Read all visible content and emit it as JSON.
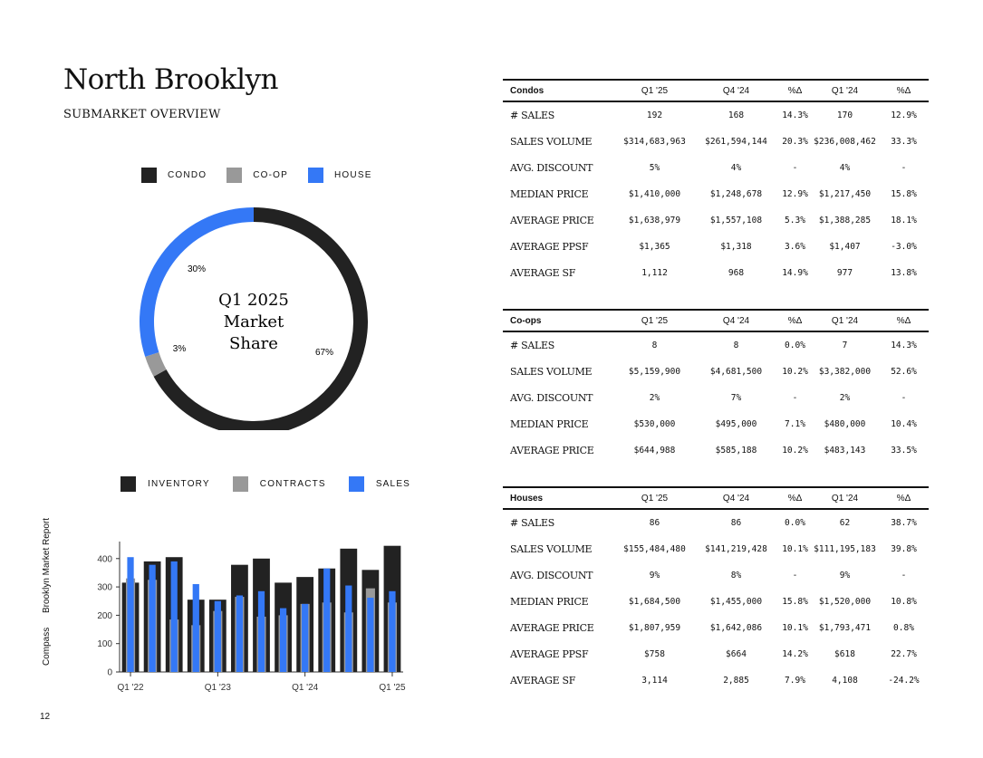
{
  "header": {
    "title": "North Brooklyn",
    "subtitle": "SUBMARKET OVERVIEW"
  },
  "colors": {
    "condo": "#222222",
    "coop": "#999999",
    "house": "#3478f6",
    "ink": "#111111"
  },
  "donut": {
    "legend": [
      "CONDO",
      "CO-OP",
      "HOUSE"
    ],
    "center_lines": [
      "Q1 2025",
      "Market",
      "Share"
    ],
    "slices": [
      {
        "name": "CONDO",
        "value": 67,
        "label": "67%"
      },
      {
        "name": "CO-OP",
        "value": 3,
        "label": "3%"
      },
      {
        "name": "HOUSE",
        "value": 30,
        "label": "30%"
      }
    ]
  },
  "chart_data": {
    "type": "bar",
    "legend": [
      "INVENTORY",
      "CONTRACTS",
      "SALES"
    ],
    "x_tick_labels": [
      "Q1 '22",
      "Q1 '23",
      "Q1 '24",
      "Q1 '25"
    ],
    "y_ticks": [
      0,
      100,
      200,
      300,
      400
    ],
    "ylim": [
      0,
      460
    ],
    "series": [
      {
        "name": "INVENTORY",
        "values": [
          315,
          390,
          405,
          255,
          255,
          378,
          400,
          315,
          335,
          365,
          435,
          360,
          445
        ]
      },
      {
        "name": "CONTRACTS",
        "values": [
          330,
          325,
          185,
          165,
          215,
          265,
          195,
          200,
          240,
          245,
          210,
          295,
          245
        ]
      },
      {
        "name": "SALES",
        "values": [
          405,
          378,
          390,
          310,
          250,
          270,
          285,
          225,
          240,
          365,
          305,
          262,
          285
        ]
      }
    ]
  },
  "sidebar": {
    "brand": "Compass",
    "report": "Brooklyn Market Report"
  },
  "page_number": "12",
  "tables": {
    "columns": [
      "Q1 '25",
      "Q4 '24",
      "%Δ",
      "Q1 '24",
      "%Δ"
    ],
    "condos": {
      "title": "Condos",
      "rows": [
        [
          "# SALES",
          "192",
          "168",
          "14.3%",
          "170",
          "12.9%"
        ],
        [
          "SALES VOLUME",
          "$314,683,963",
          "$261,594,144",
          "20.3%",
          "$236,008,462",
          "33.3%"
        ],
        [
          "AVG. DISCOUNT",
          "5%",
          "4%",
          "-",
          "4%",
          "-"
        ],
        [
          "MEDIAN PRICE",
          "$1,410,000",
          "$1,248,678",
          "12.9%",
          "$1,217,450",
          "15.8%"
        ],
        [
          "AVERAGE PRICE",
          "$1,638,979",
          "$1,557,108",
          "5.3%",
          "$1,388,285",
          "18.1%"
        ],
        [
          "AVERAGE PPSF",
          "$1,365",
          "$1,318",
          "3.6%",
          "$1,407",
          "-3.0%"
        ],
        [
          "AVERAGE SF",
          "1,112",
          "968",
          "14.9%",
          "977",
          "13.8%"
        ]
      ]
    },
    "coops": {
      "title": "Co-ops",
      "rows": [
        [
          "# SALES",
          "8",
          "8",
          "0.0%",
          "7",
          "14.3%"
        ],
        [
          "SALES VOLUME",
          "$5,159,900",
          "$4,681,500",
          "10.2%",
          "$3,382,000",
          "52.6%"
        ],
        [
          "AVG. DISCOUNT",
          "2%",
          "7%",
          "-",
          "2%",
          "-"
        ],
        [
          "MEDIAN PRICE",
          "$530,000",
          "$495,000",
          "7.1%",
          "$480,000",
          "10.4%"
        ],
        [
          "AVERAGE PRICE",
          "$644,988",
          "$585,188",
          "10.2%",
          "$483,143",
          "33.5%"
        ]
      ]
    },
    "houses": {
      "title": "Houses",
      "rows": [
        [
          "# SALES",
          "86",
          "86",
          "0.0%",
          "62",
          "38.7%"
        ],
        [
          "SALES VOLUME",
          "$155,484,480",
          "$141,219,428",
          "10.1%",
          "$111,195,183",
          "39.8%"
        ],
        [
          "AVG. DISCOUNT",
          "9%",
          "8%",
          "-",
          "9%",
          "-"
        ],
        [
          "MEDIAN PRICE",
          "$1,684,500",
          "$1,455,000",
          "15.8%",
          "$1,520,000",
          "10.8%"
        ],
        [
          "AVERAGE PRICE",
          "$1,807,959",
          "$1,642,086",
          "10.1%",
          "$1,793,471",
          "0.8%"
        ],
        [
          "AVERAGE PPSF",
          "$758",
          "$664",
          "14.2%",
          "$618",
          "22.7%"
        ],
        [
          "AVERAGE SF",
          "3,114",
          "2,885",
          "7.9%",
          "4,108",
          "-24.2%"
        ]
      ]
    }
  }
}
